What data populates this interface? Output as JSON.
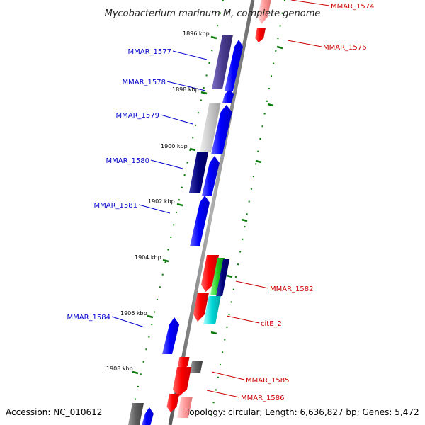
{
  "title": "Mycobacterium marinum M, complete genome",
  "footer": {
    "accession": "Accession: NC_010612",
    "topology": "Topology: circular; Length: 6,636,827 bp; Genes: 5,472"
  },
  "colors": {
    "forward_label": "#0000cc",
    "reverse_label": "#cc0000",
    "tick": "#0a7a0a",
    "backbone": "#808080"
  },
  "ticks": [
    {
      "label": "1896 kbp"
    },
    {
      "label": "1898 kbp"
    },
    {
      "label": "1900 kbp"
    },
    {
      "label": "1902 kbp"
    },
    {
      "label": "1904 kbp"
    },
    {
      "label": "1906 kbp"
    },
    {
      "label": "1908 kbp"
    }
  ],
  "gene_labels": [
    {
      "text": "MMAR_1574",
      "strand": "reverse"
    },
    {
      "text": "MMAR_1576",
      "strand": "reverse"
    },
    {
      "text": "MMAR_1577",
      "strand": "forward"
    },
    {
      "text": "MMAR_1578",
      "strand": "forward"
    },
    {
      "text": "MMAR_1579",
      "strand": "forward"
    },
    {
      "text": "MMAR_1580",
      "strand": "forward"
    },
    {
      "text": "MMAR_1581",
      "strand": "forward"
    },
    {
      "text": "MMAR_1582",
      "strand": "reverse"
    },
    {
      "text": "citE_2",
      "strand": "reverse"
    },
    {
      "text": "MMAR_1584",
      "strand": "forward"
    },
    {
      "text": "MMAR_1585",
      "strand": "reverse"
    },
    {
      "text": "MMAR_1586",
      "strand": "reverse"
    }
  ]
}
